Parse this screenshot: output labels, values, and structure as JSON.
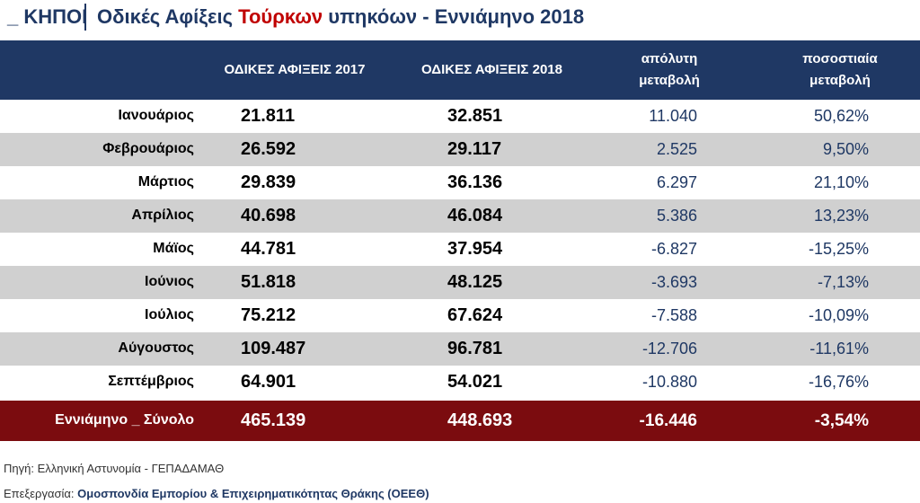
{
  "title": {
    "prefix": "_ ΚΗΠΟΙ",
    "part1": "Οδικές Αφίξεις ",
    "part2_red": "Τούρκων",
    "part3": " υπηκόων - Εννιάμηνο 2018"
  },
  "colors": {
    "header_bg": "#1f3864",
    "total_bg": "#7b0c0f",
    "row_grey": "#d0d0d0",
    "accent_red": "#c00000"
  },
  "table": {
    "headers": {
      "col1": "ΟΔΙΚΕΣ ΑΦΙΞΕΙΣ 2017",
      "col2": "ΟΔΙΚΕΣ ΑΦΙΞΕΙΣ  2018",
      "col3_line1": "απόλυτη",
      "col3_line2": "μεταβολή",
      "col4_line1": "ποσοστιαία",
      "col4_line2": "μεταβολή"
    },
    "rows": [
      {
        "month": "Ιανουάριος",
        "v2017": "21.811",
        "v2018": "32.851",
        "abs": "11.040",
        "pct": "50,62%"
      },
      {
        "month": "Φεβρουάριος",
        "v2017": "26.592",
        "v2018": "29.117",
        "abs": "2.525",
        "pct": "9,50%"
      },
      {
        "month": "Μάρτιος",
        "v2017": "29.839",
        "v2018": "36.136",
        "abs": "6.297",
        "pct": "21,10%"
      },
      {
        "month": "Απρίλιος",
        "v2017": "40.698",
        "v2018": "46.084",
        "abs": "5.386",
        "pct": "13,23%"
      },
      {
        "month": "Μάϊος",
        "v2017": "44.781",
        "v2018": "37.954",
        "abs": "-6.827",
        "pct": "-15,25%"
      },
      {
        "month": "Ιούνιος",
        "v2017": "51.818",
        "v2018": "48.125",
        "abs": "-3.693",
        "pct": "-7,13%"
      },
      {
        "month": "Ιούλιος",
        "v2017": "75.212",
        "v2018": "67.624",
        "abs": "-7.588",
        "pct": "-10,09%"
      },
      {
        "month": "Αύγουστος",
        "v2017": "109.487",
        "v2018": "96.781",
        "abs": "-12.706",
        "pct": "-11,61%"
      },
      {
        "month": "Σεπτέμβριος",
        "v2017": "64.901",
        "v2018": "54.021",
        "abs": "-10.880",
        "pct": "-16,76%"
      }
    ],
    "total": {
      "label": "Εννιάμηνο _ Σύνολο",
      "v2017": "465.139",
      "v2018": "448.693",
      "abs": "-16.446",
      "pct": "-3,54%"
    }
  },
  "footer": {
    "source": "Πηγή: Ελληνική Αστυνομία - ΓΕΠΑΔΑΜΑΘ",
    "processing_label": "Επεξεργασία: ",
    "processing_org": "Ομοσπονδία Εμπορίου & Επιχειρηματικότητας Θράκης (ΟΕΕΘ)"
  }
}
